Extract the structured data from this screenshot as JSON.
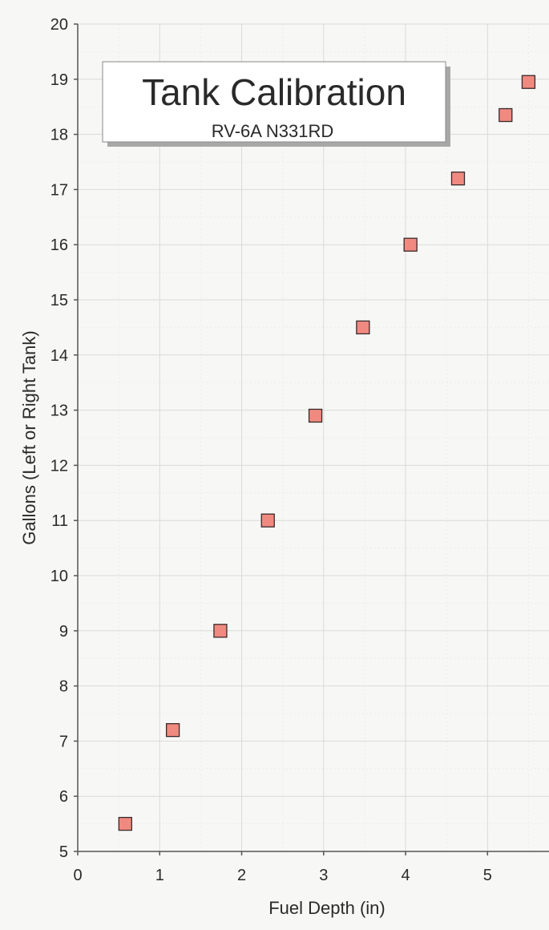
{
  "chart_data": {
    "type": "scatter",
    "title": "Tank Calibration",
    "subtitle": "RV-6A N331RD",
    "xlabel": "Fuel Depth (in)",
    "ylabel": "Gallons (Left or Right Tank)",
    "xlim": [
      0,
      5.75
    ],
    "ylim": [
      5,
      20
    ],
    "x_ticks": [
      "0",
      "1",
      "2",
      "3",
      "4",
      "5"
    ],
    "y_ticks": [
      "5",
      "6",
      "7",
      "8",
      "9",
      "10",
      "11",
      "12",
      "13",
      "14",
      "15",
      "16",
      "17",
      "18",
      "19",
      "20"
    ],
    "grid": true,
    "marker_color": "#f08a80",
    "series": [
      {
        "x": [
          0.58,
          1.16,
          1.74,
          2.32,
          2.9,
          3.48,
          4.06,
          4.64,
          5.22,
          5.5
        ],
        "y": [
          5.5,
          7.2,
          9.0,
          11.0,
          12.9,
          14.5,
          16.0,
          17.2,
          18.35,
          18.95
        ]
      }
    ]
  }
}
